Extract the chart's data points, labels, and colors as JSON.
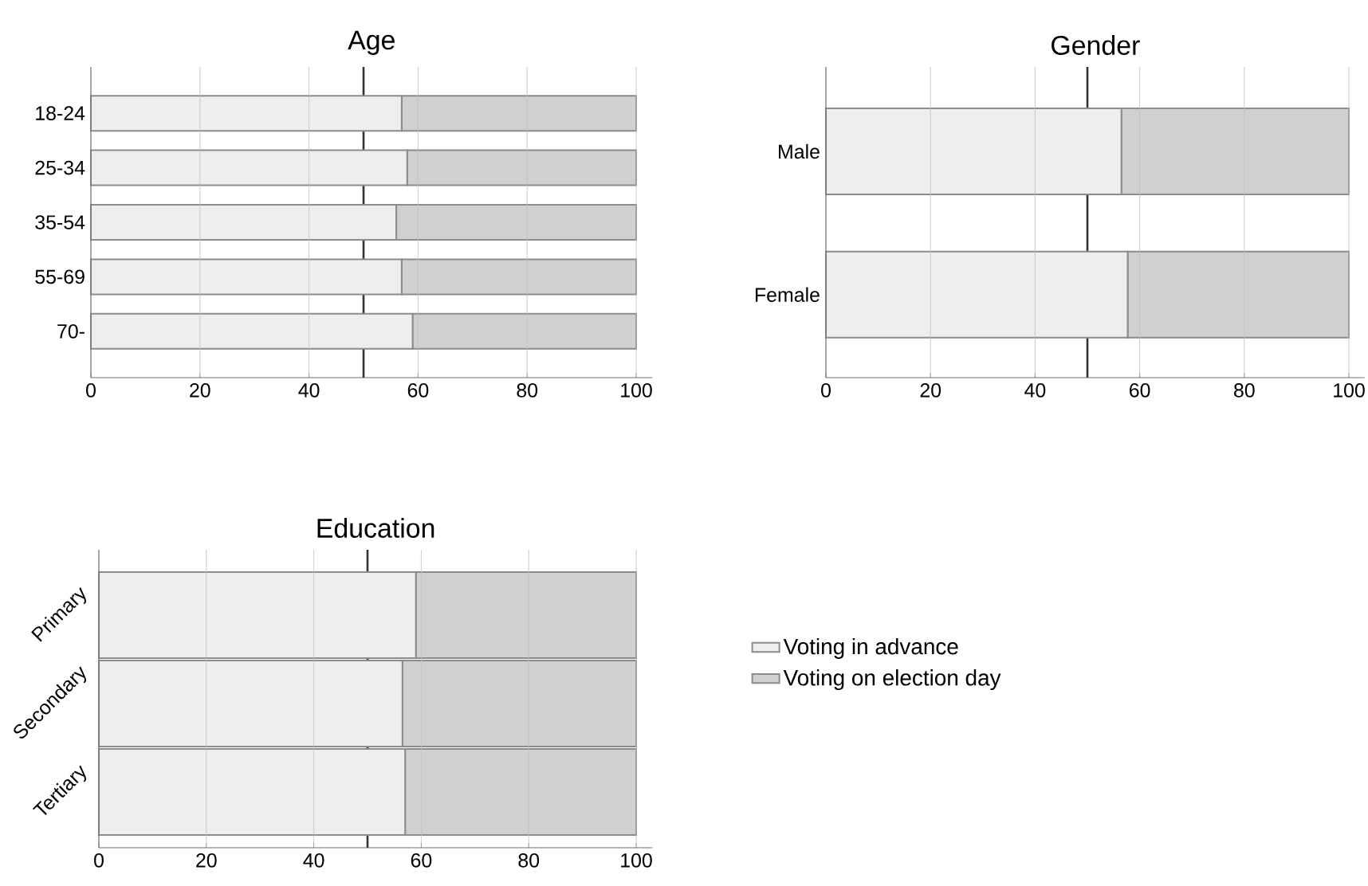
{
  "chart_data": [
    {
      "type": "bar",
      "title": "Age",
      "orientation": "horizontal",
      "stacked": true,
      "categories": [
        "18-24",
        "25-34",
        "35-54",
        "55-69",
        "70-"
      ],
      "series": [
        {
          "color": "#eeeeee",
          "values": [
            57,
            58,
            56,
            57,
            59
          ]
        },
        {
          "color": "#d0d0d0",
          "values": [
            43,
            42,
            44,
            43,
            41
          ]
        }
      ],
      "xlim": [
        0,
        103
      ],
      "xticks": [
        0,
        20,
        40,
        60,
        80,
        100
      ],
      "grid": "x",
      "ref_lines": [
        {
          "axis": "x",
          "value": 50,
          "color": "#333333"
        }
      ]
    },
    {
      "type": "bar",
      "title": "Gender",
      "orientation": "horizontal",
      "stacked": true,
      "categories": [
        "Male",
        "Female"
      ],
      "series": [
        {
          "color": "#eeeeee",
          "values": [
            56.5,
            57.7
          ]
        },
        {
          "color": "#d0d0d0",
          "values": [
            43.5,
            42.3
          ]
        }
      ],
      "xlim": [
        0,
        103
      ],
      "xticks": [
        0,
        20,
        40,
        60,
        80,
        100
      ],
      "grid": "x",
      "ref_lines": [
        {
          "axis": "x",
          "value": 50,
          "color": "#333333"
        }
      ]
    },
    {
      "type": "bar",
      "title": "Education",
      "orientation": "horizontal",
      "stacked": true,
      "categories": [
        "Primary",
        "Secondary",
        "Tertiary"
      ],
      "series": [
        {
          "name": "Voting in advance",
          "color": "#eeeeee",
          "values": [
            59,
            56.5,
            57
          ]
        },
        {
          "name": "Voting on election day",
          "color": "#d0d0d0",
          "values": [
            41,
            43.5,
            43
          ]
        }
      ],
      "xlim": [
        0,
        103
      ],
      "xticks": [
        0,
        20,
        40,
        60,
        80,
        100
      ],
      "grid": "x",
      "legend": "right",
      "ref_lines": [
        {
          "axis": "x",
          "value": 50,
          "color": "#333333"
        }
      ]
    }
  ]
}
